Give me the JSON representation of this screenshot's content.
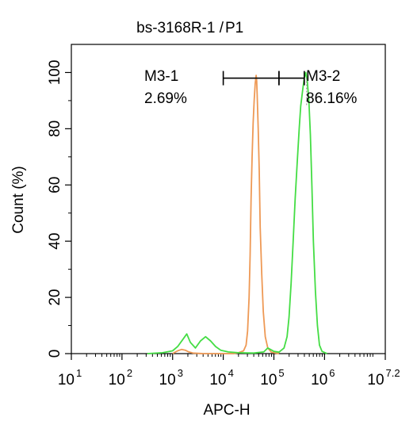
{
  "chart_data": {
    "type": "line",
    "title": {
      "main": "bs-3168R-1 /",
      "gate": "P1",
      "gate_color": "#22cc22"
    },
    "xlabel": "APC-H",
    "ylabel": "Count  (%)",
    "x_scale": "log",
    "xlim": [
      1,
      7.2
    ],
    "ylim": [
      0,
      110
    ],
    "x_ticks": [
      {
        "base": "10",
        "exp": "1",
        "value": 1
      },
      {
        "base": "10",
        "exp": "2",
        "value": 2
      },
      {
        "base": "10",
        "exp": "3",
        "value": 3
      },
      {
        "base": "10",
        "exp": "4",
        "value": 4
      },
      {
        "base": "10",
        "exp": "5",
        "value": 5
      },
      {
        "base": "10",
        "exp": "6",
        "value": 6
      },
      {
        "base": "10",
        "exp": "7.2",
        "value": 7.2
      }
    ],
    "y_ticks": [
      "0",
      "20",
      "40",
      "60",
      "80",
      "100"
    ],
    "y_tick_values": [
      0,
      20,
      40,
      60,
      80,
      100
    ],
    "series": [
      {
        "color": "#ee9955",
        "points": [
          [
            3.0,
            0
          ],
          [
            3.05,
            0.5
          ],
          [
            3.1,
            1.0
          ],
          [
            3.18,
            1.5
          ],
          [
            3.25,
            1.2
          ],
          [
            3.32,
            0.6
          ],
          [
            3.4,
            0.2
          ],
          [
            3.6,
            0
          ],
          [
            4.2,
            0
          ],
          [
            4.3,
            0.3
          ],
          [
            4.4,
            1.0
          ],
          [
            4.45,
            3
          ],
          [
            4.48,
            8
          ],
          [
            4.51,
            20
          ],
          [
            4.53,
            35
          ],
          [
            4.55,
            55
          ],
          [
            4.57,
            70
          ],
          [
            4.59,
            82
          ],
          [
            4.61,
            90
          ],
          [
            4.63,
            96
          ],
          [
            4.65,
            99
          ],
          [
            4.66,
            97
          ],
          [
            4.67,
            92
          ],
          [
            4.69,
            80
          ],
          [
            4.71,
            65
          ],
          [
            4.73,
            45
          ],
          [
            4.76,
            28
          ],
          [
            4.79,
            15
          ],
          [
            4.83,
            6
          ],
          [
            4.88,
            2
          ],
          [
            4.95,
            0.5
          ],
          [
            5.1,
            0
          ]
        ]
      },
      {
        "color": "#44dd44",
        "points": [
          [
            2.5,
            0
          ],
          [
            2.8,
            0.3
          ],
          [
            3.0,
            1.0
          ],
          [
            3.1,
            2.5
          ],
          [
            3.2,
            5
          ],
          [
            3.28,
            7
          ],
          [
            3.35,
            4
          ],
          [
            3.45,
            2
          ],
          [
            3.55,
            4.5
          ],
          [
            3.65,
            6
          ],
          [
            3.75,
            4.5
          ],
          [
            3.85,
            2.5
          ],
          [
            3.95,
            1.2
          ],
          [
            4.1,
            0.6
          ],
          [
            4.3,
            0.3
          ],
          [
            4.6,
            0.2
          ],
          [
            4.8,
            0.6
          ],
          [
            4.88,
            2
          ],
          [
            4.93,
            1.5
          ],
          [
            5.0,
            0.8
          ],
          [
            5.1,
            0.5
          ],
          [
            5.2,
            2
          ],
          [
            5.26,
            6
          ],
          [
            5.3,
            13
          ],
          [
            5.34,
            25
          ],
          [
            5.38,
            40
          ],
          [
            5.42,
            55
          ],
          [
            5.46,
            68
          ],
          [
            5.5,
            80
          ],
          [
            5.53,
            88
          ],
          [
            5.57,
            94
          ],
          [
            5.6,
            98
          ],
          [
            5.63,
            100
          ],
          [
            5.66,
            97
          ],
          [
            5.69,
            90
          ],
          [
            5.72,
            78
          ],
          [
            5.75,
            60
          ],
          [
            5.78,
            40
          ],
          [
            5.82,
            22
          ],
          [
            5.86,
            10
          ],
          [
            5.9,
            3
          ],
          [
            5.95,
            0.8
          ],
          [
            6.05,
            0
          ]
        ]
      }
    ],
    "markers": [
      {
        "label": "M3-1",
        "percent": "2.69%",
        "x_start": 4.0,
        "x_end": 5.1,
        "y": 98
      },
      {
        "label": "M3-2",
        "percent": "86.16%",
        "x_start": 5.1,
        "x_end": 5.6,
        "y": 98
      }
    ],
    "marker_line": {
      "x": 5.6,
      "y_top": 98,
      "y_bottom": 88
    },
    "grid": false,
    "legend": "none"
  }
}
